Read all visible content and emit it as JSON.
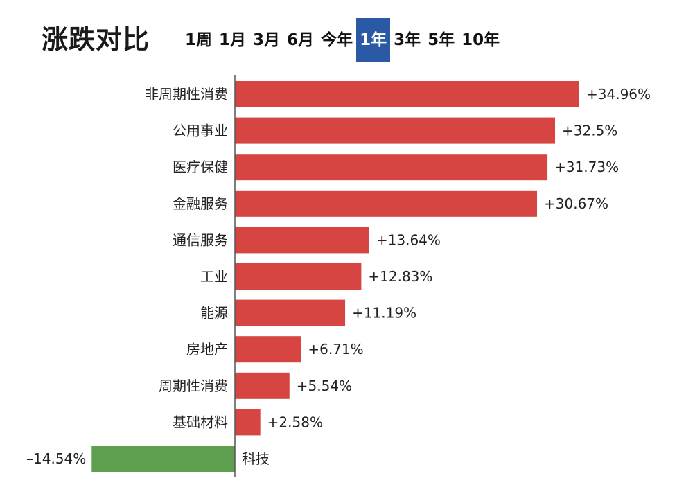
{
  "header": {
    "title": "涨跌对比",
    "tabs": [
      {
        "label": "1周",
        "active": false
      },
      {
        "label": "1月",
        "active": false
      },
      {
        "label": "3月",
        "active": false
      },
      {
        "label": "6月",
        "active": false
      },
      {
        "label": "今年",
        "active": false
      },
      {
        "label": "1年",
        "active": true
      },
      {
        "label": "3年",
        "active": false
      },
      {
        "label": "5年",
        "active": false
      },
      {
        "label": "10年",
        "active": false
      }
    ]
  },
  "colors": {
    "positive": "#d64541",
    "negative": "#5d9e4f",
    "axis": "#555555",
    "active_tab": "#2a5aa6"
  },
  "chart_data": {
    "type": "bar",
    "orientation": "horizontal",
    "categories": [
      "非周期性消费",
      "公用事业",
      "医疗保健",
      "金融服务",
      "通信服务",
      "工业",
      "能源",
      "房地产",
      "周期性消费",
      "基础材料",
      "科技"
    ],
    "values": [
      34.96,
      32.5,
      31.73,
      30.67,
      13.64,
      12.83,
      11.19,
      6.71,
      5.54,
      2.58,
      -14.54
    ],
    "value_labels": [
      "+34.96%",
      "+32.5%",
      "+31.73%",
      "+30.67%",
      "+13.64%",
      "+12.83%",
      "+11.19%",
      "+6.71%",
      "+5.54%",
      "+2.58%",
      "–14.54%"
    ],
    "title": "涨跌对比",
    "xlabel": "",
    "ylabel": "",
    "grid": false,
    "legend": "none"
  }
}
